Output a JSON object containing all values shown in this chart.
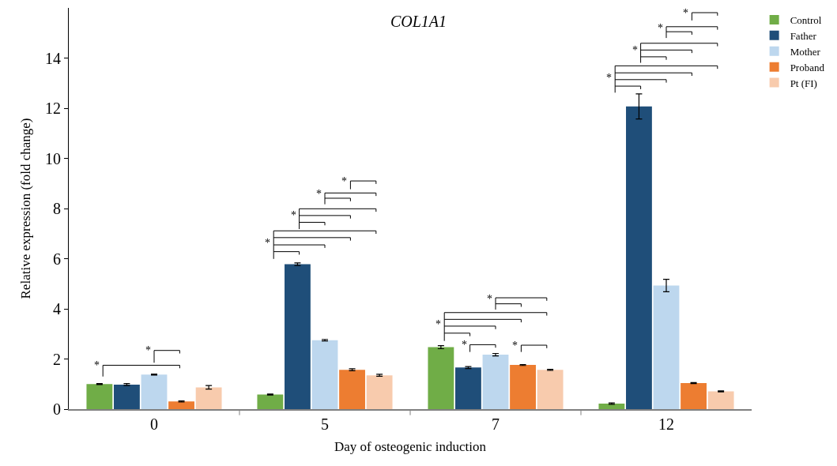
{
  "chart_data": {
    "type": "bar",
    "title": "COL1A1",
    "xlabel": "Day of osteogenic induction",
    "ylabel": "Relative expression (fold change)",
    "categories": [
      "0",
      "5",
      "7",
      "12"
    ],
    "series": [
      {
        "name": "Control",
        "color": "#70ad47",
        "values": [
          1.0,
          0.58,
          2.47,
          0.22
        ],
        "errors": [
          0.02,
          0.02,
          0.06,
          0.03
        ]
      },
      {
        "name": "Father",
        "color": "#1f4e79",
        "values": [
          0.98,
          5.78,
          1.66,
          12.07
        ],
        "errors": [
          0.04,
          0.05,
          0.04,
          0.5
        ]
      },
      {
        "name": "Mother",
        "color": "#bdd7ee",
        "values": [
          1.38,
          2.75,
          2.17,
          4.93
        ],
        "errors": [
          0.02,
          0.03,
          0.05,
          0.25
        ]
      },
      {
        "name": "Proband",
        "color": "#ed7d31",
        "values": [
          0.31,
          1.57,
          1.76,
          1.04
        ],
        "errors": [
          0.02,
          0.04,
          0.02,
          0.02
        ]
      },
      {
        "name": "Pt (FI)",
        "color": "#f8cbad",
        "values": [
          0.87,
          1.35,
          1.57,
          0.71
        ],
        "errors": [
          0.07,
          0.04,
          0.02,
          0.02
        ]
      }
    ],
    "ylim": [
      0,
      16
    ],
    "yticks": [
      0,
      2,
      4,
      6,
      8,
      10,
      12,
      14
    ],
    "grid": false,
    "legend": "top right",
    "annotations": [
      "*",
      "*",
      "*",
      "*",
      "*",
      "*",
      "*",
      "*",
      "*",
      "*",
      "*",
      "*",
      "*",
      "*"
    ]
  }
}
